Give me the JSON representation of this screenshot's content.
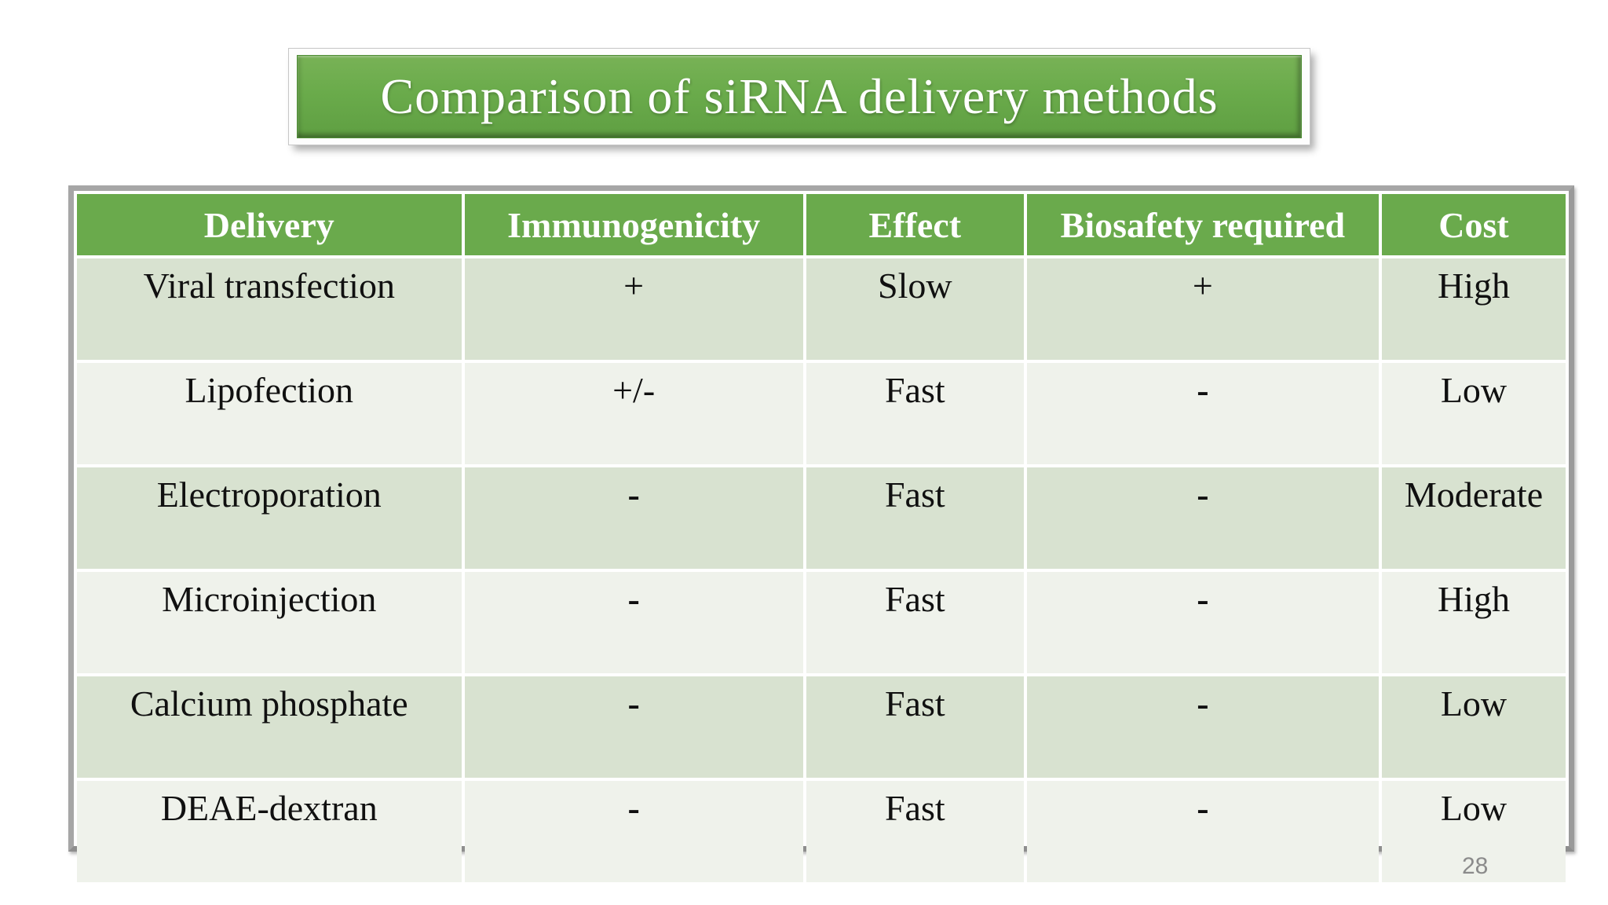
{
  "slide": {
    "title": "Comparison of siRNA delivery methods",
    "page_number": "28"
  },
  "table": {
    "columns": [
      "Delivery",
      "Immunogenicity",
      "Effect",
      "Biosafety required",
      "Cost"
    ],
    "rows": [
      [
        "Viral transfection",
        "+",
        "Slow",
        "+",
        "High"
      ],
      [
        "Lipofection",
        "+/-",
        "Fast",
        "-",
        "Low"
      ],
      [
        "Electroporation",
        "-",
        "Fast",
        "-",
        "Moderate"
      ],
      [
        "Microinjection",
        "-",
        "Fast",
        "-",
        "High"
      ],
      [
        "Calcium phosphate",
        "-",
        "Fast",
        "-",
        "Low"
      ],
      [
        "DEAE-dextran",
        "-",
        "Fast",
        "-",
        "Low"
      ]
    ]
  },
  "colors": {
    "title_green": "#6aab4b",
    "header_green": "#6aaa4c",
    "row_band_green": "#d8e2d0",
    "row_band_light": "#eff2eb",
    "frame_gray": "#a6a6a6",
    "page_number_gray": "#8b8b8b"
  }
}
